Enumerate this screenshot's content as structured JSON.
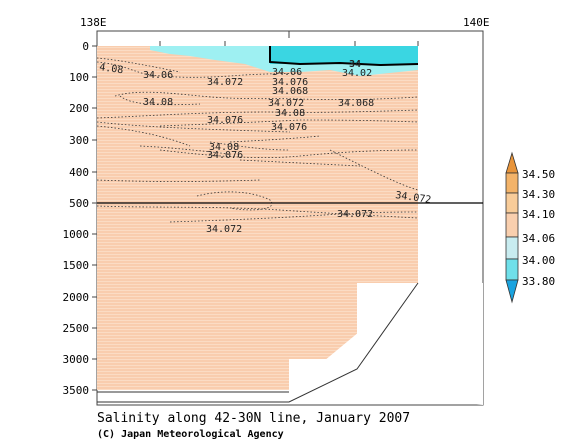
{
  "chart_data": {
    "type": "heatmap",
    "title": "Salinity along 42-30N line, January 2007",
    "credit": "(C) Japan Meteorological Agency",
    "x_ticks": [
      "138E",
      "140E"
    ],
    "y_ticks_upper": [
      "0",
      "100",
      "200",
      "300",
      "400",
      "500"
    ],
    "y_ticks_lower": [
      "1000",
      "1500",
      "2000",
      "2500",
      "3000",
      "3500"
    ],
    "y_unit_break": 500,
    "contour_labels": [
      {
        "text": "4.08",
        "depth": 70
      },
      {
        "text": "34.06",
        "depth": 85
      },
      {
        "text": "34.072",
        "depth": 105
      },
      {
        "text": "34.06",
        "depth": 80
      },
      {
        "text": "34.076",
        "depth": 95
      },
      {
        "text": "34.068",
        "depth": 135
      },
      {
        "text": "34",
        "depth": 55
      },
      {
        "text": "34.02",
        "depth": 77
      },
      {
        "text": "34.08",
        "depth": 180
      },
      {
        "text": "34.072",
        "depth": 170
      },
      {
        "text": "34.08",
        "depth": 200
      },
      {
        "text": "34.076",
        "depth": 250
      },
      {
        "text": "34.076",
        "depth": 265
      },
      {
        "text": "34.068",
        "depth": 165
      },
      {
        "text": "34.08",
        "depth": 305
      },
      {
        "text": "34.076",
        "depth": 330
      },
      {
        "text": "34.072",
        "depth": 470
      },
      {
        "text": "34.072",
        "depth": 830
      },
      {
        "text": "34.072",
        "depth": 1000
      }
    ],
    "colorbar": {
      "labels": [
        "34.50",
        "34.30",
        "34.10",
        "34.06",
        "34.00",
        "33.80"
      ],
      "colors": [
        "#e8943a",
        "#f3b369",
        "#f8cc99",
        "#c8ecf0",
        "#6fe0ea",
        "#1aa3df"
      ]
    },
    "colors": {
      "fill_main": "#f9cfae",
      "fill_low": "#9ef0f2",
      "fill_lowest": "#3ad6e2"
    }
  }
}
